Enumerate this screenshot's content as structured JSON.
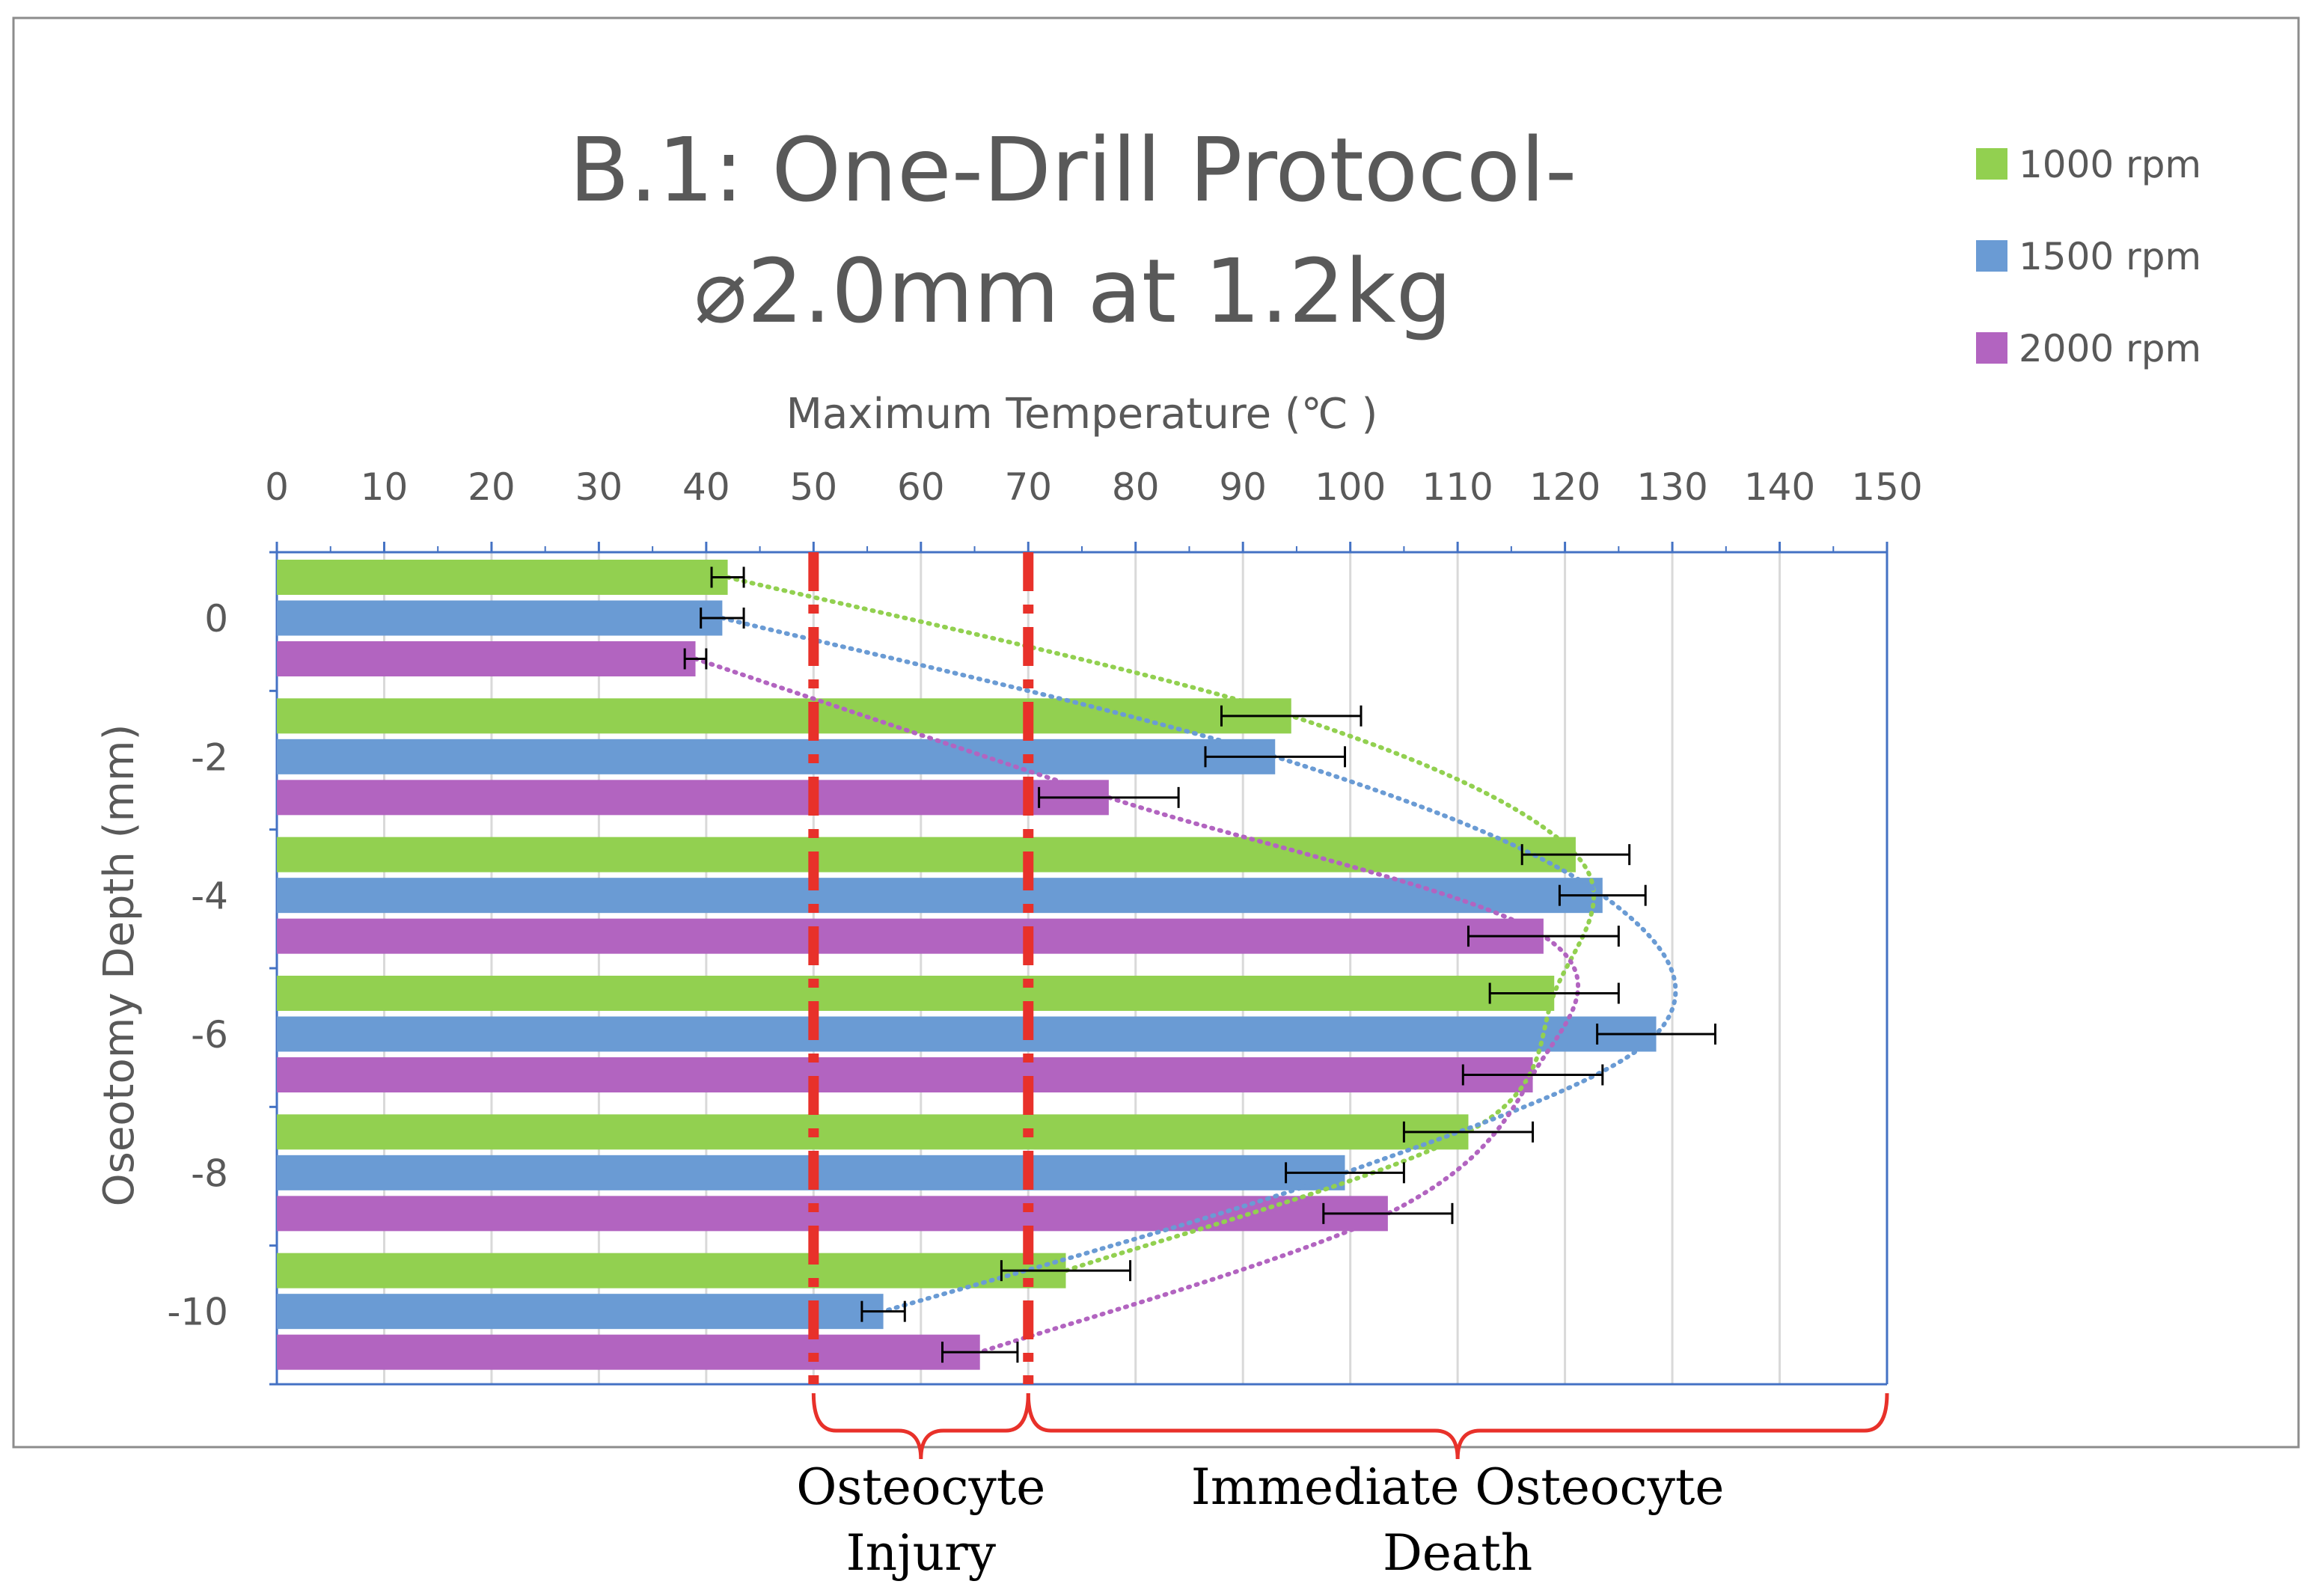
{
  "chart_data": {
    "type": "bar",
    "orientation": "horizontal",
    "title_lines": [
      "B.1: One-Drill Protocol-",
      "⌀2.0mm at 1.2kg"
    ],
    "xlabel": "Maximum Temperature (℃ )",
    "ylabel": "Oseotomy Depth (mm)",
    "xlim": [
      0,
      150
    ],
    "x_ticks": [
      "0",
      "10",
      "20",
      "30",
      "40",
      "50",
      "60",
      "70",
      "80",
      "90",
      "100",
      "110",
      "120",
      "130",
      "140",
      "150"
    ],
    "x_axis_position": "top",
    "categories": [
      "0",
      "-2",
      "-4",
      "-6",
      "-8",
      "-10"
    ],
    "grid": "vertical",
    "legend_position": "top-right",
    "series": [
      {
        "name": "1000 rpm",
        "color": "#92d050",
        "values": [
          42,
          94.5,
          121,
          119,
          111,
          73.5
        ],
        "errors": [
          1.5,
          6.5,
          5,
          6,
          6,
          6
        ]
      },
      {
        "name": "1500 rpm",
        "color": "#6a9bd4",
        "values": [
          41.5,
          93,
          123.5,
          128.5,
          99.5,
          56.5
        ],
        "errors": [
          2,
          6.5,
          4,
          5.5,
          5.5,
          2
        ]
      },
      {
        "name": "2000 rpm",
        "color": "#b264c0",
        "values": [
          39,
          77.5,
          118,
          117,
          103.5,
          65.5
        ],
        "errors": [
          1,
          6.5,
          7,
          6.5,
          6,
          3.5
        ]
      }
    ],
    "thresholds": [
      {
        "value": 50,
        "color": "#e8312a"
      },
      {
        "value": 70,
        "color": "#e8312a"
      }
    ],
    "zones": [
      {
        "from": 50,
        "to": 70,
        "label_lines": [
          "Osteocyte",
          "Injury"
        ]
      },
      {
        "from": 70,
        "to": 150,
        "label_lines": [
          "Immediate Osteocyte",
          "Death"
        ]
      }
    ]
  }
}
